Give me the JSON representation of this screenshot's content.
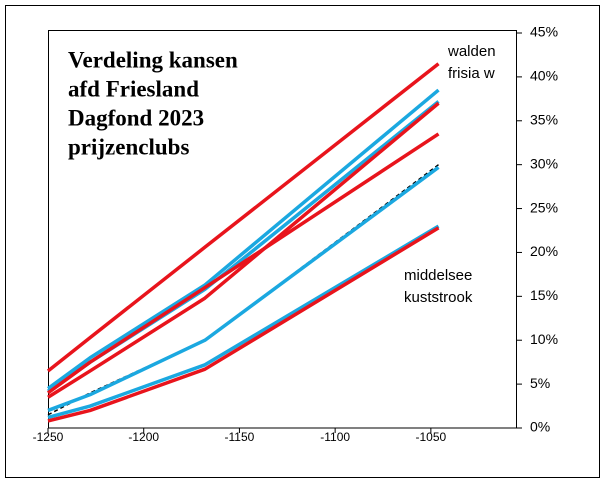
{
  "chart_data": {
    "type": "line",
    "title": [
      "Verdeling kansen",
      "afd Friesland",
      "Dagfond 2023",
      "prijzenclubs"
    ],
    "annotations": [
      {
        "lines": [
          "walden",
          "frisia w"
        ]
      },
      {
        "lines": [
          "middelsee",
          "kuststrook"
        ]
      }
    ],
    "x": [
      -1250,
      -1228,
      -1168,
      -1046
    ],
    "series": [
      {
        "color": "#e8141c",
        "values": [
          6.5,
          10.3,
          20.6,
          41.5
        ]
      },
      {
        "color": "#1ba8e0",
        "values": [
          4.5,
          8,
          16.3,
          38.5
        ]
      },
      {
        "color": "#1ba8e0",
        "values": [
          4.2,
          7.5,
          15.8,
          37.2
        ]
      },
      {
        "color": "#e8141c",
        "values": [
          3.5,
          6.5,
          14.8,
          37
        ]
      },
      {
        "color": "#e8141c",
        "values": [
          4,
          7.5,
          16,
          33.5
        ]
      },
      {
        "color": "#000000",
        "dash": true,
        "values": [
          1.5,
          4,
          10,
          30
        ]
      },
      {
        "color": "#1ba8e0",
        "values": [
          2,
          3.8,
          10,
          29.7
        ]
      },
      {
        "color": "#1ba8e0",
        "values": [
          1.2,
          2.5,
          7.2,
          23
        ]
      },
      {
        "color": "#e8141c",
        "values": [
          0.8,
          2,
          6.7,
          22.8
        ]
      }
    ],
    "xlim": [
      -1250,
      -1005
    ],
    "xticks": [
      -1250,
      -1200,
      -1150,
      -1100,
      -1050
    ],
    "ylim": [
      0,
      45
    ],
    "yticks": [
      {
        "value": 0,
        "label": "0%"
      },
      {
        "value": 5,
        "label": "5%"
      },
      {
        "value": 10,
        "label": "10%"
      },
      {
        "value": 15,
        "label": "15%"
      },
      {
        "value": 20,
        "label": "20%"
      },
      {
        "value": 25,
        "label": "25%"
      },
      {
        "value": 30,
        "label": "30%"
      },
      {
        "value": 35,
        "label": "35%"
      },
      {
        "value": 40,
        "label": "40%"
      },
      {
        "value": 45,
        "label": "45%"
      }
    ],
    "grid": false
  }
}
